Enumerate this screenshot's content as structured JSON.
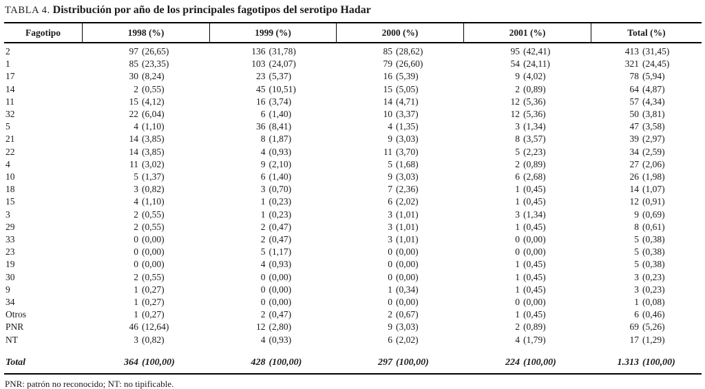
{
  "title": {
    "label": "TABLA 4.",
    "text": "Distribución por año de los principales fagotipos del serotipo Hadar"
  },
  "table": {
    "columns": [
      "Fagotipo",
      "1998 (%)",
      "1999 (%)",
      "2000 (%)",
      "2001 (%)",
      "Total (%)"
    ],
    "rows": [
      {
        "fagotipo": "2",
        "values": [
          "97 (26,65)",
          "136 (31,78)",
          "85 (28,62)",
          "95 (42,41)",
          "413 (31,45)"
        ]
      },
      {
        "fagotipo": "1",
        "values": [
          "85 (23,35)",
          "103 (24,07)",
          "79 (26,60)",
          "54 (24,11)",
          "321 (24,45)"
        ]
      },
      {
        "fagotipo": "17",
        "values": [
          "30 (8,24)",
          "23 (5,37)",
          "16 (5,39)",
          "9 (4,02)",
          "78 (5,94)"
        ]
      },
      {
        "fagotipo": "14",
        "values": [
          "2 (0,55)",
          "45 (10,51)",
          "15 (5,05)",
          "2 (0,89)",
          "64 (4,87)"
        ]
      },
      {
        "fagotipo": "11",
        "values": [
          "15 (4,12)",
          "16 (3,74)",
          "14 (4,71)",
          "12 (5,36)",
          "57 (4,34)"
        ]
      },
      {
        "fagotipo": "32",
        "values": [
          "22 (6,04)",
          "6 (1,40)",
          "10 (3,37)",
          "12 (5,36)",
          "50 (3,81)"
        ]
      },
      {
        "fagotipo": "5",
        "values": [
          "4 (1,10)",
          "36 (8,41)",
          "4 (1,35)",
          "3 (1,34)",
          "47 (3,58)"
        ]
      },
      {
        "fagotipo": "21",
        "values": [
          "14 (3,85)",
          "8 (1,87)",
          "9 (3,03)",
          "8 (3,57)",
          "39 (2,97)"
        ]
      },
      {
        "fagotipo": "22",
        "values": [
          "14 (3,85)",
          "4 (0,93)",
          "11 (3,70)",
          "5 (2,23)",
          "34 (2,59)"
        ]
      },
      {
        "fagotipo": "4",
        "values": [
          "11 (3,02)",
          "9 (2,10)",
          "5 (1,68)",
          "2 (0,89)",
          "27 (2,06)"
        ]
      },
      {
        "fagotipo": "10",
        "values": [
          "5 (1,37)",
          "6 (1,40)",
          "9 (3,03)",
          "6 (2,68)",
          "26 (1,98)"
        ]
      },
      {
        "fagotipo": "18",
        "values": [
          "3 (0,82)",
          "3 (0,70)",
          "7 (2,36)",
          "1 (0,45)",
          "14 (1,07)"
        ]
      },
      {
        "fagotipo": "15",
        "values": [
          "4 (1,10)",
          "1 (0,23)",
          "6 (2,02)",
          "1 (0,45)",
          "12 (0,91)"
        ]
      },
      {
        "fagotipo": "3",
        "values": [
          "2 (0,55)",
          "1 (0,23)",
          "3 (1,01)",
          "3 (1,34)",
          "9 (0,69)"
        ]
      },
      {
        "fagotipo": "29",
        "values": [
          "2 (0,55)",
          "2 (0,47)",
          "3 (1,01)",
          "1 (0,45)",
          "8 (0,61)"
        ]
      },
      {
        "fagotipo": "33",
        "values": [
          "0 (0,00)",
          "2 (0,47)",
          "3 (1,01)",
          "0 (0,00)",
          "5 (0,38)"
        ]
      },
      {
        "fagotipo": "23",
        "values": [
          "0 (0,00)",
          "5 (1,17)",
          "0 (0,00)",
          "0 (0,00)",
          "5 (0,38)"
        ]
      },
      {
        "fagotipo": "19",
        "values": [
          "0 (0,00)",
          "4 (0,93)",
          "0 (0,00)",
          "1 (0,45)",
          "5 (0,38)"
        ]
      },
      {
        "fagotipo": "30",
        "values": [
          "2 (0,55)",
          "0 (0,00)",
          "0 (0,00)",
          "1 (0,45)",
          "3 (0,23)"
        ]
      },
      {
        "fagotipo": "9",
        "values": [
          "1 (0,27)",
          "0 (0,00)",
          "1 (0,34)",
          "1 (0,45)",
          "3 (0,23)"
        ]
      },
      {
        "fagotipo": "34",
        "values": [
          "1 (0,27)",
          "0 (0,00)",
          "0 (0,00)",
          "0 (0,00)",
          "1 (0,08)"
        ]
      },
      {
        "fagotipo": "Otros",
        "values": [
          "1 (0,27)",
          "2 (0,47)",
          "2 (0,67)",
          "1 (0,45)",
          "6 (0,46)"
        ]
      },
      {
        "fagotipo": "PNR",
        "values": [
          "46 (12,64)",
          "12 (2,80)",
          "9 (3,03)",
          "2 (0,89)",
          "69 (5,26)"
        ]
      },
      {
        "fagotipo": "NT",
        "values": [
          "3 (0,82)",
          "4 (0,93)",
          "6 (2,02)",
          "4 (1,79)",
          "17 (1,29)"
        ]
      }
    ],
    "total": {
      "label": "Total",
      "values": [
        "364 (100,00)",
        "428 (100,00)",
        "297 (100,00)",
        "224 (100,00)",
        "1.313 (100,00)"
      ]
    }
  },
  "footnote": "PNR: patrón no reconocido; NT: no tipificable."
}
